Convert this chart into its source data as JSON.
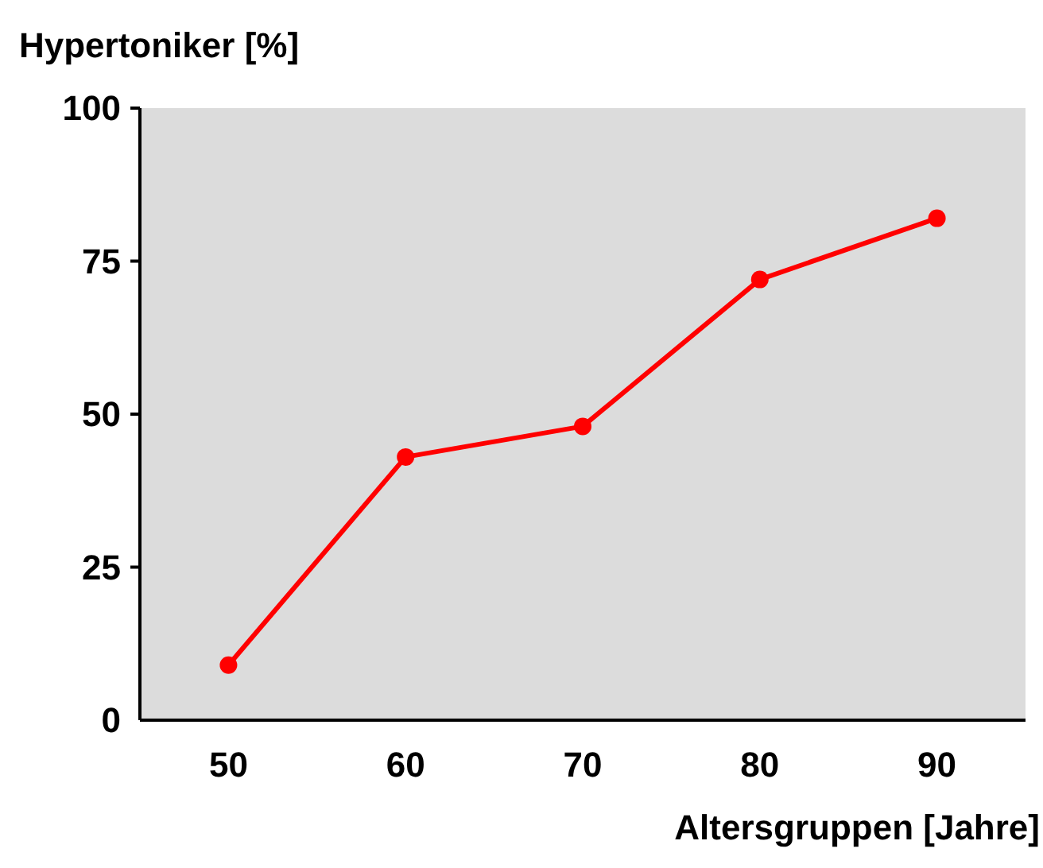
{
  "chart_data": {
    "type": "line",
    "xlabel": "Altersgruppen [Jahre]",
    "ylabel": "Hypertoniker [%]",
    "x": [
      50,
      60,
      70,
      80,
      90
    ],
    "series": [
      {
        "color": "#ff0000",
        "values": [
          9,
          43,
          48,
          72,
          82
        ]
      }
    ],
    "xlim": [
      45,
      95
    ],
    "xticks": [
      50,
      60,
      70,
      80,
      90
    ],
    "ylim": [
      0,
      100
    ],
    "yticks": [
      0,
      25,
      50,
      75,
      100
    ],
    "marker": "circle",
    "line_style": "solid",
    "legend": false,
    "grid": false
  }
}
